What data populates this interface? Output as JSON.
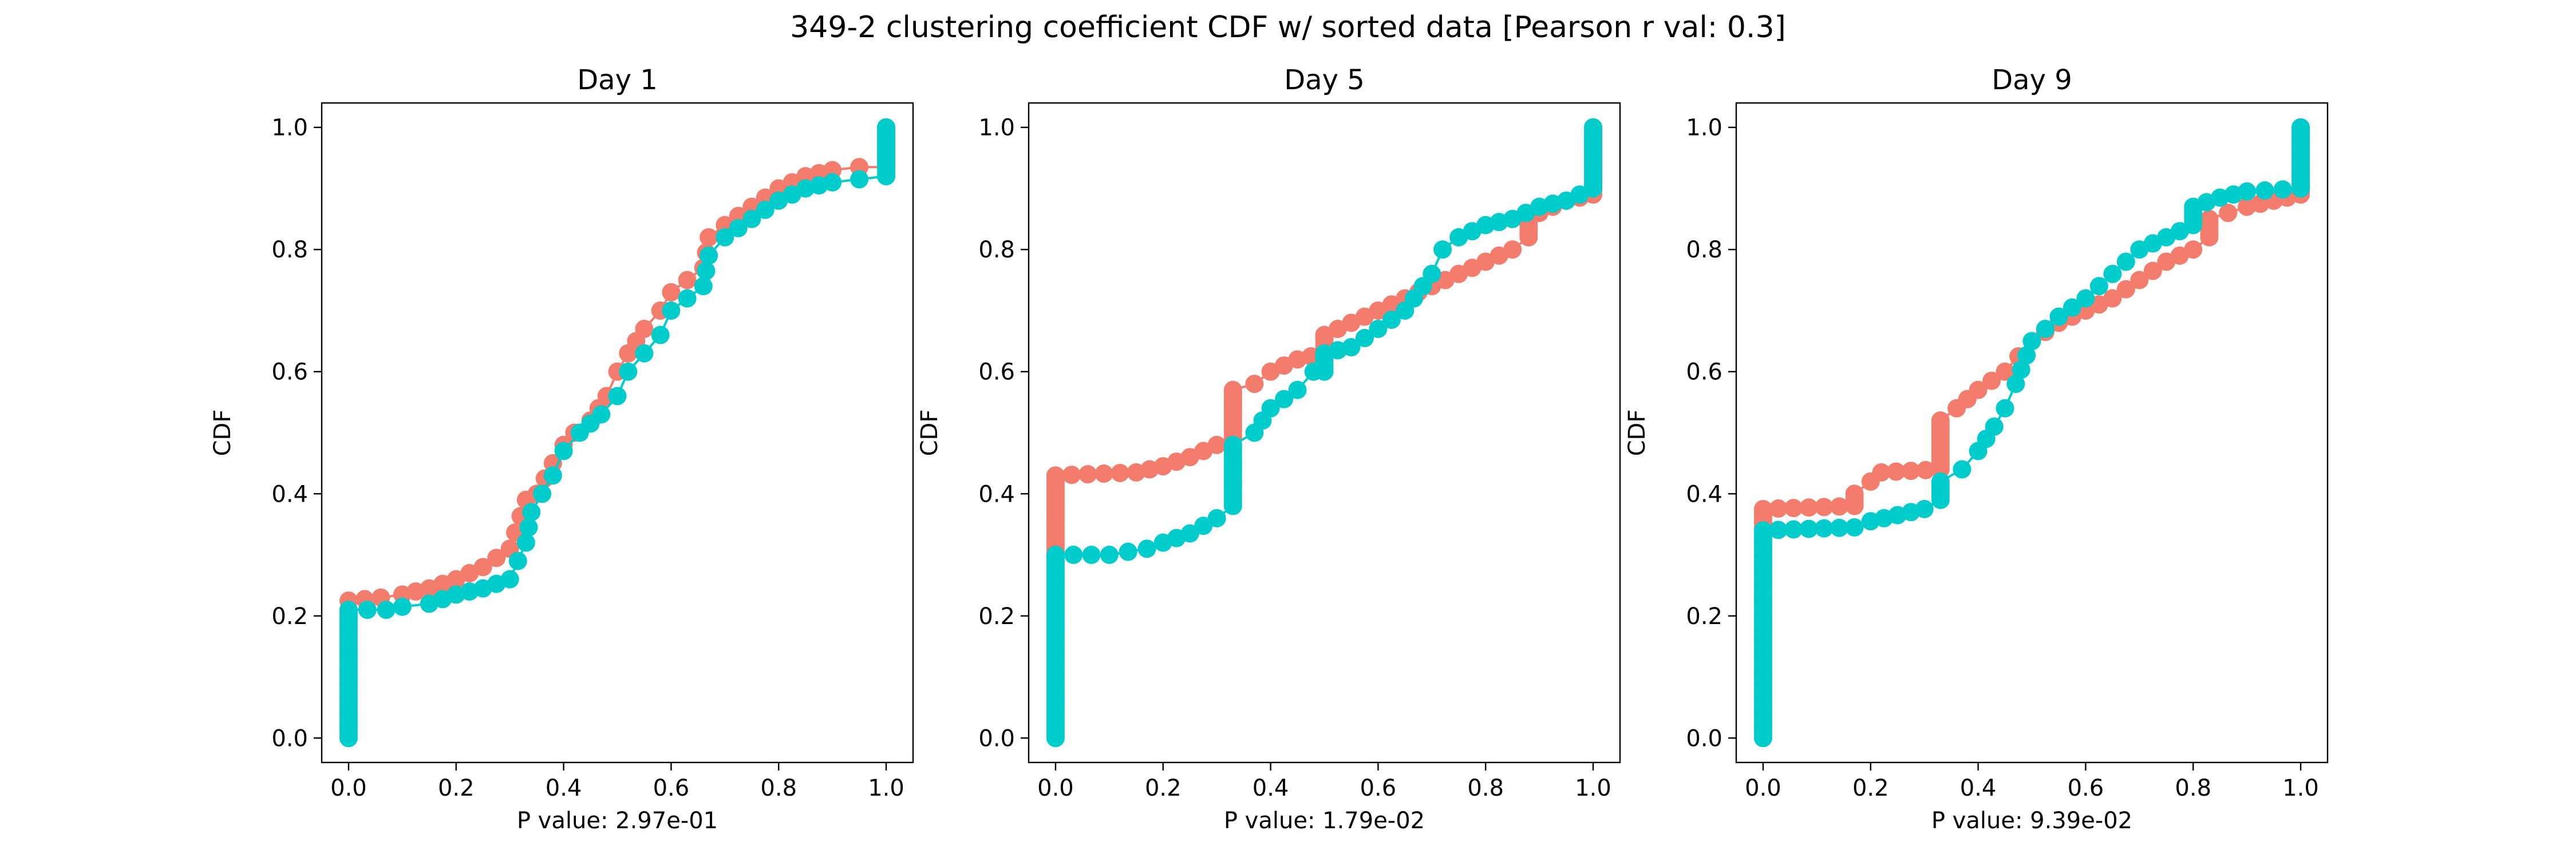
{
  "figure": {
    "title": "349-2 clustering coefficient CDF w/ sorted data [Pearson r val: 0.3]"
  },
  "colors": {
    "series_a": "#f47c6c",
    "series_b": "#00cccc",
    "axis": "#000000",
    "background": "#ffffff"
  },
  "chart_data": [
    {
      "type": "line",
      "title": "Day 1",
      "xlabel": "P value: 2.97e-01",
      "ylabel": "CDF",
      "xlim": [
        -0.05,
        1.05
      ],
      "ylim": [
        -0.04,
        1.04
      ],
      "xticks": [
        "0.0",
        "0.2",
        "0.4",
        "0.6",
        "0.8",
        "1.0"
      ],
      "yticks": [
        "0.0",
        "0.2",
        "0.4",
        "0.6",
        "0.8",
        "1.0"
      ],
      "grid": false,
      "legend": "none",
      "series": [
        {
          "color": "#f47c6c",
          "points": [
            [
              0,
              0.225
            ],
            [
              0.06,
              0.23
            ],
            [
              0.1,
              0.235
            ],
            [
              0.15,
              0.245
            ],
            [
              0.2,
              0.26
            ],
            [
              0.25,
              0.28
            ],
            [
              0.3,
              0.31
            ],
            [
              0.33,
              0.39
            ],
            [
              0.35,
              0.4
            ],
            [
              0.38,
              0.45
            ],
            [
              0.4,
              0.48
            ],
            [
              0.42,
              0.5
            ],
            [
              0.45,
              0.52
            ],
            [
              0.48,
              0.56
            ],
            [
              0.5,
              0.6
            ],
            [
              0.52,
              0.63
            ],
            [
              0.55,
              0.67
            ],
            [
              0.58,
              0.7
            ],
            [
              0.6,
              0.73
            ],
            [
              0.63,
              0.75
            ],
            [
              0.66,
              0.77
            ],
            [
              0.67,
              0.82
            ],
            [
              0.7,
              0.84
            ],
            [
              0.75,
              0.87
            ],
            [
              0.8,
              0.9
            ],
            [
              0.85,
              0.92
            ],
            [
              0.9,
              0.93
            ],
            [
              0.95,
              0.935
            ],
            [
              1.0,
              0.935
            ],
            [
              1.0,
              1.0
            ]
          ]
        },
        {
          "color": "#00cccc",
          "points": [
            [
              0,
              0.0
            ],
            [
              0,
              0.21
            ],
            [
              0.07,
              0.21
            ],
            [
              0.1,
              0.215
            ],
            [
              0.15,
              0.22
            ],
            [
              0.2,
              0.235
            ],
            [
              0.25,
              0.245
            ],
            [
              0.3,
              0.26
            ],
            [
              0.33,
              0.32
            ],
            [
              0.34,
              0.37
            ],
            [
              0.36,
              0.4
            ],
            [
              0.38,
              0.43
            ],
            [
              0.4,
              0.47
            ],
            [
              0.43,
              0.5
            ],
            [
              0.47,
              0.53
            ],
            [
              0.5,
              0.56
            ],
            [
              0.52,
              0.6
            ],
            [
              0.55,
              0.63
            ],
            [
              0.58,
              0.66
            ],
            [
              0.6,
              0.7
            ],
            [
              0.63,
              0.72
            ],
            [
              0.66,
              0.74
            ],
            [
              0.67,
              0.79
            ],
            [
              0.7,
              0.82
            ],
            [
              0.75,
              0.85
            ],
            [
              0.8,
              0.88
            ],
            [
              0.85,
              0.9
            ],
            [
              0.9,
              0.91
            ],
            [
              0.95,
              0.915
            ],
            [
              1.0,
              0.92
            ],
            [
              1.0,
              1.0
            ]
          ]
        }
      ]
    },
    {
      "type": "line",
      "title": "Day 5",
      "xlabel": "P value: 1.79e-02",
      "ylabel": "CDF",
      "xlim": [
        -0.05,
        1.05
      ],
      "ylim": [
        -0.04,
        1.04
      ],
      "xticks": [
        "0.0",
        "0.2",
        "0.4",
        "0.6",
        "0.8",
        "1.0"
      ],
      "yticks": [
        "0.0",
        "0.2",
        "0.4",
        "0.6",
        "0.8",
        "1.0"
      ],
      "grid": false,
      "legend": "none",
      "series": [
        {
          "color": "#f47c6c",
          "points": [
            [
              0,
              0.3
            ],
            [
              0,
              0.43
            ],
            [
              0.15,
              0.435
            ],
            [
              0.2,
              0.445
            ],
            [
              0.25,
              0.46
            ],
            [
              0.3,
              0.48
            ],
            [
              0.33,
              0.49
            ],
            [
              0.33,
              0.57
            ],
            [
              0.37,
              0.58
            ],
            [
              0.4,
              0.6
            ],
            [
              0.45,
              0.62
            ],
            [
              0.5,
              0.63
            ],
            [
              0.5,
              0.66
            ],
            [
              0.55,
              0.68
            ],
            [
              0.6,
              0.7
            ],
            [
              0.65,
              0.72
            ],
            [
              0.7,
              0.74
            ],
            [
              0.75,
              0.76
            ],
            [
              0.8,
              0.78
            ],
            [
              0.85,
              0.8
            ],
            [
              0.88,
              0.82
            ],
            [
              0.88,
              0.85
            ],
            [
              0.9,
              0.86
            ],
            [
              0.95,
              0.88
            ],
            [
              1.0,
              0.89
            ],
            [
              1.0,
              1.0
            ]
          ]
        },
        {
          "color": "#00cccc",
          "points": [
            [
              0,
              0.0
            ],
            [
              0,
              0.3
            ],
            [
              0.1,
              0.3
            ],
            [
              0.17,
              0.31
            ],
            [
              0.2,
              0.32
            ],
            [
              0.25,
              0.335
            ],
            [
              0.3,
              0.36
            ],
            [
              0.33,
              0.38
            ],
            [
              0.33,
              0.48
            ],
            [
              0.37,
              0.5
            ],
            [
              0.4,
              0.54
            ],
            [
              0.45,
              0.57
            ],
            [
              0.48,
              0.6
            ],
            [
              0.5,
              0.6
            ],
            [
              0.5,
              0.63
            ],
            [
              0.55,
              0.64
            ],
            [
              0.6,
              0.67
            ],
            [
              0.65,
              0.7
            ],
            [
              0.7,
              0.76
            ],
            [
              0.72,
              0.8
            ],
            [
              0.75,
              0.82
            ],
            [
              0.8,
              0.84
            ],
            [
              0.85,
              0.85
            ],
            [
              0.9,
              0.87
            ],
            [
              0.95,
              0.88
            ],
            [
              1.0,
              0.9
            ],
            [
              1.0,
              1.0
            ]
          ]
        }
      ]
    },
    {
      "type": "line",
      "title": "Day 9",
      "xlabel": "P value: 9.39e-02",
      "ylabel": "CDF",
      "xlim": [
        -0.05,
        1.05
      ],
      "ylim": [
        -0.04,
        1.04
      ],
      "xticks": [
        "0.0",
        "0.2",
        "0.4",
        "0.6",
        "0.8",
        "1.0"
      ],
      "yticks": [
        "0.0",
        "0.2",
        "0.4",
        "0.6",
        "0.8",
        "1.0"
      ],
      "grid": false,
      "legend": "none",
      "series": [
        {
          "color": "#f47c6c",
          "points": [
            [
              0,
              0.34
            ],
            [
              0,
              0.375
            ],
            [
              0.17,
              0.38
            ],
            [
              0.17,
              0.4
            ],
            [
              0.2,
              0.42
            ],
            [
              0.22,
              0.435
            ],
            [
              0.33,
              0.44
            ],
            [
              0.33,
              0.52
            ],
            [
              0.36,
              0.54
            ],
            [
              0.4,
              0.57
            ],
            [
              0.45,
              0.6
            ],
            [
              0.5,
              0.65
            ],
            [
              0.55,
              0.68
            ],
            [
              0.6,
              0.7
            ],
            [
              0.65,
              0.72
            ],
            [
              0.7,
              0.75
            ],
            [
              0.75,
              0.78
            ],
            [
              0.8,
              0.8
            ],
            [
              0.83,
              0.82
            ],
            [
              0.83,
              0.85
            ],
            [
              0.9,
              0.87
            ],
            [
              0.95,
              0.88
            ],
            [
              1.0,
              0.89
            ],
            [
              1.0,
              1.0
            ]
          ]
        },
        {
          "color": "#00cccc",
          "points": [
            [
              0,
              0.0
            ],
            [
              0,
              0.34
            ],
            [
              0.17,
              0.345
            ],
            [
              0.2,
              0.355
            ],
            [
              0.25,
              0.365
            ],
            [
              0.3,
              0.375
            ],
            [
              0.33,
              0.39
            ],
            [
              0.33,
              0.42
            ],
            [
              0.37,
              0.44
            ],
            [
              0.4,
              0.47
            ],
            [
              0.43,
              0.51
            ],
            [
              0.45,
              0.54
            ],
            [
              0.47,
              0.58
            ],
            [
              0.5,
              0.65
            ],
            [
              0.55,
              0.69
            ],
            [
              0.6,
              0.72
            ],
            [
              0.65,
              0.76
            ],
            [
              0.7,
              0.8
            ],
            [
              0.75,
              0.82
            ],
            [
              0.8,
              0.84
            ],
            [
              0.8,
              0.87
            ],
            [
              0.85,
              0.885
            ],
            [
              0.9,
              0.895
            ],
            [
              1.0,
              0.9
            ],
            [
              1.0,
              1.0
            ]
          ]
        }
      ]
    }
  ]
}
